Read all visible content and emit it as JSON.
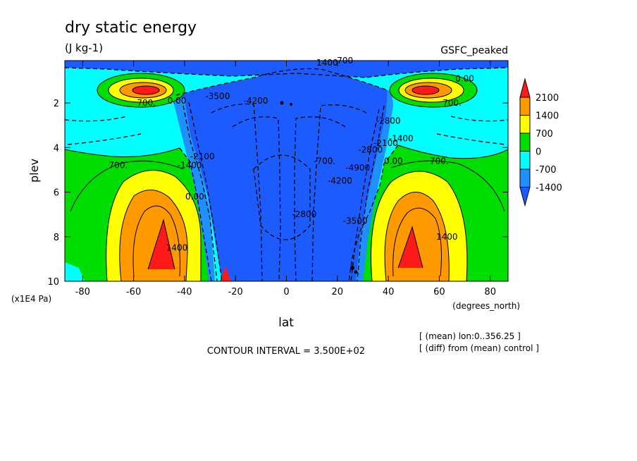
{
  "chart_data": {
    "type": "heatmap",
    "title": "dry static energy",
    "subtitle": "(J kg-1)",
    "experiment": "GSFC_peaked",
    "xlabel": "lat",
    "xunits": "(degrees_north)",
    "ylabel": "plev",
    "yunits": "(x1E4 Pa)",
    "xlim": [
      -87,
      87
    ],
    "ylim": [
      10,
      0.1
    ],
    "x_ticks": [
      -80,
      -60,
      -40,
      -20,
      0,
      20,
      40,
      60,
      80
    ],
    "y_ticks": [
      2,
      4,
      6,
      8,
      10
    ],
    "contour_interval_text": "CONTOUR INTERVAL = 3.500E+02",
    "notes": [
      "[ (mean) lon:0..356.25 ]",
      "[ (diff) from (mean) control ]"
    ],
    "colorbar": {
      "levels": [
        2100,
        1400,
        700,
        0,
        -700,
        -1400
      ],
      "level_labels": [
        "2100",
        "1400",
        "700",
        "0",
        "-700",
        "-1400"
      ],
      "colors": {
        "above_2100": "#ff1a1a",
        "1400_2100": "#ff9900",
        "700_1400": "#ffff00",
        "0_700": "#00dd00",
        "-700_0": "#00ffff",
        "-1400_-700": "#1e90ff",
        "below_-1400": "#1c5cff"
      }
    },
    "contour_labels": [
      {
        "text": "700",
        "lat": 23,
        "plev": 0.1
      },
      {
        "text": "1400",
        "lat": 16,
        "plev": 0.2
      },
      {
        "text": "0.00",
        "lat": 70,
        "plev": 0.9
      },
      {
        "text": "700.",
        "lat": -55,
        "plev": 2.0
      },
      {
        "text": "0.00",
        "lat": -43,
        "plev": 1.9
      },
      {
        "text": "700.",
        "lat": 65,
        "plev": 2.0
      },
      {
        "text": "-3500",
        "lat": -27,
        "plev": 1.7
      },
      {
        "text": "-4200",
        "lat": -12,
        "plev": 1.9
      },
      {
        "text": "-2800",
        "lat": 40,
        "plev": 2.8
      },
      {
        "text": "-1400",
        "lat": -38,
        "plev": 4.8
      },
      {
        "text": "-2100",
        "lat": -33,
        "plev": 4.4
      },
      {
        "text": "-700.",
        "lat": 15,
        "plev": 4.6
      },
      {
        "text": "0.00",
        "lat": -36,
        "plev": 6.2
      },
      {
        "text": "-4900",
        "lat": 28,
        "plev": 4.9
      },
      {
        "text": "-4200",
        "lat": 21,
        "plev": 5.5
      },
      {
        "text": "-2800",
        "lat": 33,
        "plev": 4.1
      },
      {
        "text": "-2100",
        "lat": 39,
        "plev": 3.8
      },
      {
        "text": "-1400",
        "lat": 45,
        "plev": 3.6
      },
      {
        "text": "0.00",
        "lat": 42,
        "plev": 4.6
      },
      {
        "text": "700.",
        "lat": -66,
        "plev": 4.8
      },
      {
        "text": "700.",
        "lat": 60,
        "plev": 4.6
      },
      {
        "text": "-2800",
        "lat": 7,
        "plev": 7.0
      },
      {
        "text": "-3500",
        "lat": 27,
        "plev": 7.3
      },
      {
        "text": "1400",
        "lat": -43,
        "plev": 8.5
      },
      {
        "text": "1400",
        "lat": 63,
        "plev": 8.0
      }
    ]
  }
}
